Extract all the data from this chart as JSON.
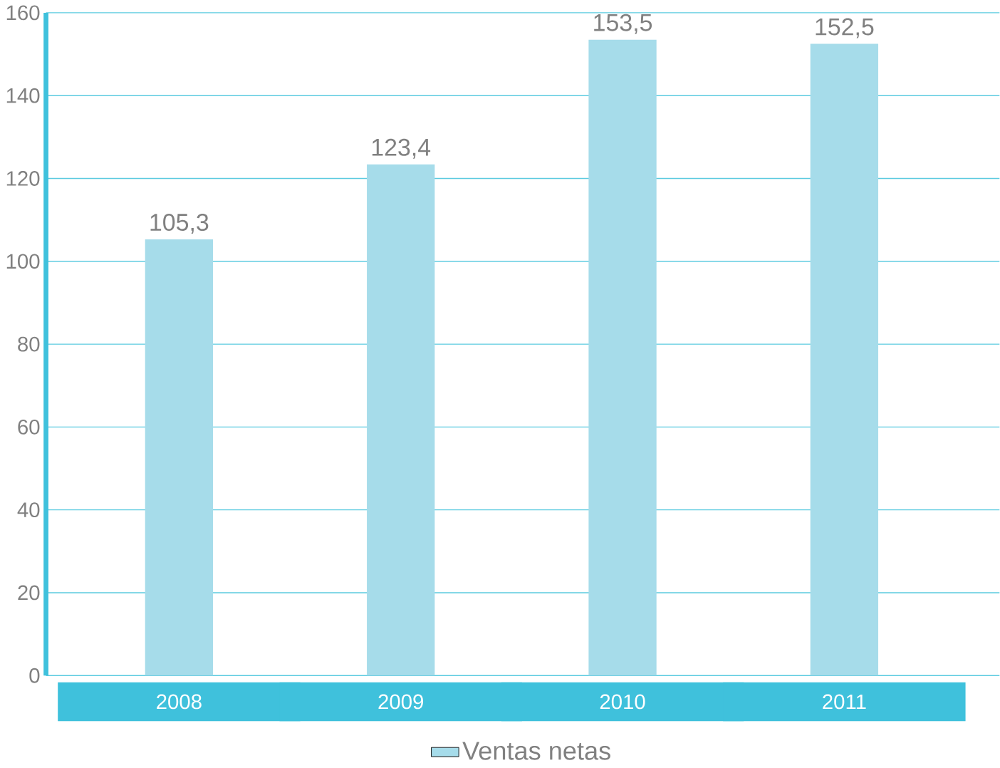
{
  "chart_data": {
    "type": "bar",
    "categories": [
      "2008",
      "2009",
      "2010",
      "2011"
    ],
    "series": [
      {
        "name": "Ventas netas",
        "color": "#a6dcea",
        "values": [
          105.3,
          123.4,
          153.5,
          152.5
        ]
      }
    ],
    "value_labels": [
      "105,3",
      "123,4",
      "153,5",
      "152,5"
    ],
    "ylim": [
      0,
      160
    ],
    "yticks": [
      0,
      20,
      40,
      60,
      80,
      100,
      120,
      140,
      160
    ],
    "grid": "y",
    "legend": "bottom"
  }
}
